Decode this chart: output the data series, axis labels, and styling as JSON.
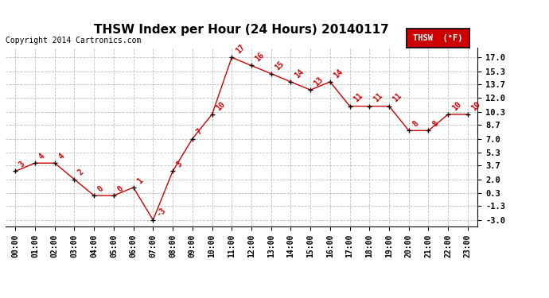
{
  "title": "THSW Index per Hour (24 Hours) 20140117",
  "copyright": "Copyright 2014 Cartronics.com",
  "legend_label": "THSW  (°F)",
  "hour_labels": [
    "00:00",
    "01:00",
    "02:00",
    "03:00",
    "04:00",
    "05:00",
    "06:00",
    "07:00",
    "08:00",
    "09:00",
    "10:00",
    "11:00",
    "12:00",
    "13:00",
    "14:00",
    "15:00",
    "16:00",
    "17:00",
    "18:00",
    "19:00",
    "20:00",
    "21:00",
    "22:00",
    "23:00"
  ],
  "values": [
    3,
    4,
    4,
    2,
    0,
    0,
    1,
    -3,
    3,
    7,
    10,
    17,
    16,
    15,
    14,
    13,
    14,
    11,
    11,
    11,
    8,
    8,
    10,
    10
  ],
  "yticks": [
    -3.0,
    -1.3,
    0.3,
    2.0,
    3.7,
    5.3,
    7.0,
    8.7,
    10.3,
    12.0,
    13.7,
    15.3,
    17.0
  ],
  "ylim": [
    -3.8,
    18.2
  ],
  "line_color": "#cc0000",
  "marker_color": "#000000",
  "bg_color": "#ffffff",
  "grid_color": "#c0c0c0",
  "title_fontsize": 11,
  "copyright_fontsize": 7,
  "legend_bg": "#cc0000",
  "legend_fg": "#ffffff",
  "annotation_fontsize": 7,
  "tick_fontsize": 7
}
